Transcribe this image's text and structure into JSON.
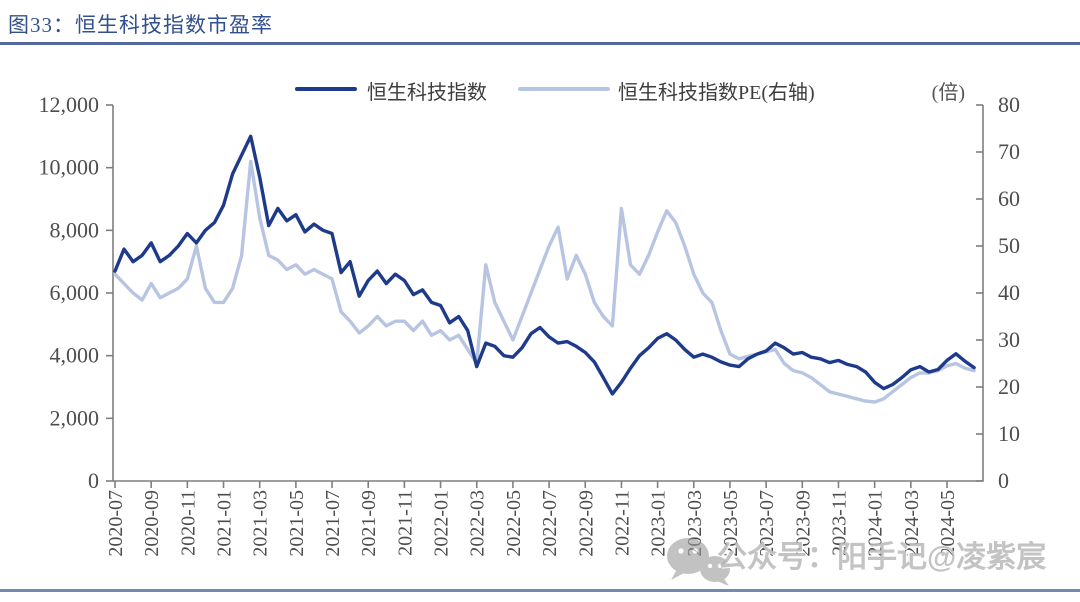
{
  "header": {
    "title": "图33：恒生科技指数市盈率"
  },
  "legend": {
    "items": [
      "恒生科技指数",
      "恒生科技指数PE(右轴)"
    ]
  },
  "watermark": {
    "text": "公众号：阳手记@凌紫宸",
    "icon": "wechat-icon"
  },
  "colors": {
    "title": "#33508e",
    "title_rule": "#54699d",
    "bottom_rule": "#7289b2",
    "axis": "#7f7f7f",
    "tick_label": "#4d4d4d",
    "index_line": "#1e3a8a",
    "pe_line": "#b7c5e2",
    "watermark": "#acacac"
  },
  "chart_data": {
    "type": "line",
    "title": "图33：恒生科技指数市盈率",
    "x_start": "2020-07",
    "x_end": "2024-06",
    "points_per_month": 2,
    "x_tick_labels": [
      "2020-07",
      "2020-09",
      "2020-11",
      "2021-01",
      "2021-03",
      "2021-05",
      "2021-07",
      "2021-09",
      "2021-11",
      "2022-01",
      "2022-03",
      "2022-05",
      "2022-07",
      "2022-09",
      "2022-11",
      "2023-01",
      "2023-03",
      "2023-05",
      "2023-07",
      "2023-09",
      "2023-11",
      "2024-01",
      "2024-03",
      "2024-05"
    ],
    "left_axis": {
      "min": 0,
      "max": 12000,
      "tick_values": [
        0,
        2000,
        4000,
        6000,
        8000,
        10000,
        12000
      ],
      "tick_labels": [
        "0",
        "2,000",
        "4,000",
        "6,000",
        "8,000",
        "10,000",
        "12,000"
      ]
    },
    "right_axis": {
      "min": 0,
      "max": 80,
      "unit": "(倍)",
      "tick_values": [
        0,
        10,
        20,
        30,
        40,
        50,
        60,
        70,
        80
      ],
      "tick_labels": [
        "0",
        "10",
        "20",
        "30",
        "40",
        "50",
        "60",
        "70",
        "80"
      ]
    },
    "grid": false,
    "legend_position": "top",
    "series": [
      {
        "name": "恒生科技指数PE(右轴)",
        "axis": "right",
        "color": "#b7c5e2",
        "values": [
          44,
          42,
          40,
          38.5,
          42,
          39,
          40,
          41,
          43,
          50,
          41,
          38,
          38,
          41,
          48,
          68,
          56,
          48,
          47,
          45,
          46,
          44,
          45,
          44,
          43,
          36,
          34,
          31.5,
          33,
          35,
          33,
          34,
          34,
          32,
          34,
          31,
          32,
          30,
          31,
          28,
          25,
          46,
          38,
          34,
          30,
          35,
          40,
          45,
          50,
          54,
          43,
          48,
          44,
          38,
          35,
          33,
          58,
          46,
          44,
          48,
          53,
          57.5,
          55,
          50,
          44,
          40,
          38,
          32,
          27,
          26,
          26.5,
          27,
          27.5,
          28,
          25,
          23.5,
          23,
          22,
          20.5,
          19,
          18.5,
          18,
          17.5,
          17,
          16.8,
          17.5,
          19,
          20.5,
          22,
          23,
          23,
          23.5,
          24.5,
          25,
          24,
          23.5
        ]
      },
      {
        "name": "恒生科技指数",
        "axis": "left",
        "color": "#1e3a8a",
        "values": [
          6700,
          7400,
          7000,
          7200,
          7600,
          7000,
          7200,
          7500,
          7900,
          7600,
          8000,
          8250,
          8800,
          9800,
          10400,
          11000,
          9700,
          8150,
          8700,
          8300,
          8500,
          7950,
          8200,
          8000,
          7900,
          6650,
          7000,
          5900,
          6400,
          6700,
          6300,
          6600,
          6400,
          5950,
          6100,
          5700,
          5600,
          5050,
          5250,
          4800,
          3650,
          4400,
          4300,
          4000,
          3950,
          4250,
          4700,
          4900,
          4600,
          4400,
          4450,
          4300,
          4100,
          3800,
          3300,
          2780,
          3150,
          3600,
          4000,
          4250,
          4550,
          4700,
          4500,
          4200,
          3950,
          4050,
          3950,
          3800,
          3700,
          3650,
          3900,
          4050,
          4150,
          4400,
          4250,
          4050,
          4100,
          3950,
          3900,
          3780,
          3850,
          3720,
          3650,
          3480,
          3150,
          2950,
          3080,
          3300,
          3550,
          3650,
          3480,
          3560,
          3850,
          4060,
          3820,
          3620
        ]
      }
    ]
  }
}
